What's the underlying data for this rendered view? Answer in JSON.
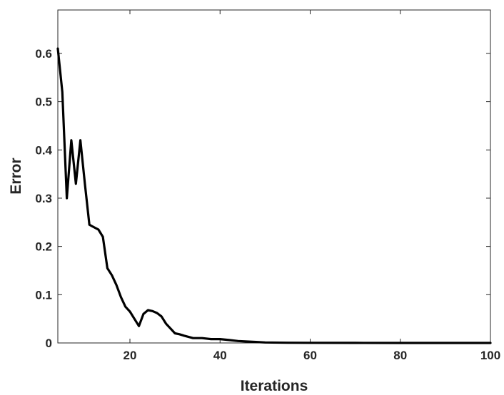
{
  "chart_data": {
    "type": "line",
    "xlabel": "Iterations",
    "ylabel": "Error",
    "xlim": [
      4,
      100
    ],
    "ylim": [
      0,
      0.69
    ],
    "xticks": [
      20,
      40,
      60,
      80,
      100
    ],
    "xtick_labels": [
      "20",
      "40",
      "60",
      "80",
      "100"
    ],
    "yticks": [
      0,
      0.1,
      0.2,
      0.3,
      0.4,
      0.5,
      0.6
    ],
    "ytick_labels": [
      "0",
      "0.1",
      "0.2",
      "0.3",
      "0.4",
      "0.5",
      "0.6"
    ],
    "grid": false,
    "legend": "none",
    "line_color": "#000000",
    "axis_color": "#262626",
    "series": [
      {
        "x": [
          4,
          5,
          6,
          7,
          8,
          9,
          10,
          11,
          12,
          13,
          14,
          15,
          16,
          17,
          18,
          19,
          20,
          21,
          22,
          23,
          24,
          25,
          26,
          27,
          28,
          29,
          30,
          31,
          32,
          34,
          36,
          38,
          40,
          42,
          44,
          46,
          48,
          50,
          55,
          60,
          70,
          80,
          90,
          100
        ],
        "y": [
          0.61,
          0.52,
          0.3,
          0.42,
          0.33,
          0.42,
          0.33,
          0.245,
          0.24,
          0.235,
          0.22,
          0.155,
          0.14,
          0.12,
          0.095,
          0.075,
          0.065,
          0.05,
          0.035,
          0.06,
          0.068,
          0.066,
          0.062,
          0.055,
          0.04,
          0.03,
          0.02,
          0.018,
          0.015,
          0.01,
          0.01,
          0.008,
          0.008,
          0.006,
          0.004,
          0.003,
          0.002,
          0.001,
          0.0005,
          0.0003,
          0.0001,
          0.0,
          0.0,
          0.0
        ]
      }
    ]
  }
}
